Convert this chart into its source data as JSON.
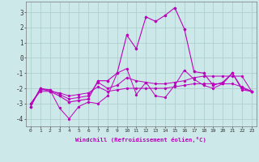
{
  "xlabel": "Windchill (Refroidissement éolien,°C)",
  "x_hours": [
    0,
    1,
    2,
    3,
    4,
    5,
    6,
    7,
    8,
    9,
    10,
    11,
    12,
    13,
    14,
    15,
    16,
    17,
    18,
    19,
    20,
    21,
    22,
    23
  ],
  "line1": [
    -3.2,
    -2.0,
    -2.1,
    -3.3,
    -4.0,
    -3.2,
    -2.9,
    -3.0,
    -2.5,
    -1.0,
    -0.7,
    -2.4,
    -1.6,
    -2.5,
    -2.6,
    -1.8,
    -0.8,
    -1.4,
    -1.8,
    -2.0,
    -1.7,
    -1.0,
    -2.1,
    -2.2
  ],
  "line2": [
    -3.2,
    -2.0,
    -2.2,
    -2.5,
    -2.9,
    -2.8,
    -2.7,
    -1.5,
    -1.5,
    -1.0,
    1.5,
    0.6,
    2.7,
    2.4,
    2.8,
    3.3,
    1.9,
    -0.9,
    -1.0,
    -1.8,
    -1.6,
    -1.0,
    -2.0,
    -2.2
  ],
  "line3": [
    -3.0,
    -2.1,
    -2.1,
    -2.4,
    -2.7,
    -2.6,
    -2.5,
    -1.6,
    -2.0,
    -1.8,
    -1.3,
    -1.5,
    -1.6,
    -1.7,
    -1.7,
    -1.6,
    -1.5,
    -1.3,
    -1.2,
    -1.2,
    -1.2,
    -1.2,
    -1.2,
    -2.2
  ],
  "line4": [
    -3.0,
    -2.2,
    -2.2,
    -2.3,
    -2.5,
    -2.4,
    -2.3,
    -1.9,
    -2.2,
    -2.1,
    -2.0,
    -2.0,
    -2.0,
    -2.0,
    -2.0,
    -1.9,
    -1.8,
    -1.7,
    -1.7,
    -1.7,
    -1.7,
    -1.7,
    -1.9,
    -2.2
  ],
  "color": "#bb00bb",
  "bg_color": "#cce8e8",
  "grid_color": "#aacccc",
  "ylim": [
    -4.5,
    3.7
  ],
  "yticks": [
    -4,
    -3,
    -2,
    -1,
    0,
    1,
    2,
    3
  ],
  "figsize": [
    3.2,
    2.0
  ],
  "dpi": 100
}
